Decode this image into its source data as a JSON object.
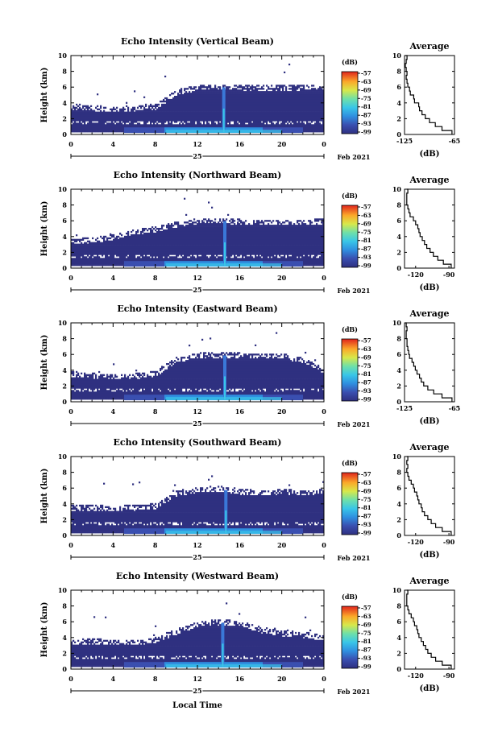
{
  "figure": {
    "xlabel": "Local Time",
    "date_label": "Feb 2021",
    "day_label": "25",
    "ylabel": "Height (km)",
    "colorbar_unit": "(dB)",
    "colorbar_ticks": [
      "-57",
      "-63",
      "-69",
      "-75",
      "-81",
      "-87",
      "-93",
      "-99"
    ],
    "avg_title": "Average",
    "avg_xlabel": "(dB)"
  },
  "chart_data": [
    {
      "type": "heatmap",
      "title": "Echo Intensity (Vertical Beam)",
      "x_ticks": [
        "0",
        "4",
        "8",
        "12",
        "16",
        "20",
        "0"
      ],
      "y_ticks": [
        "0",
        "2",
        "4",
        "6",
        "8",
        "10"
      ],
      "xlim": [
        0,
        24
      ],
      "ylim": [
        0,
        10
      ],
      "layer_tops_km": [
        3.8,
        3.6,
        3.4,
        3.6,
        3.8,
        5.6,
        6.2,
        6.3,
        6.2,
        6.1,
        6.2,
        6.2,
        6.3
      ],
      "plume_time_h": 14.5,
      "colorbar_range_db": [
        -99,
        -57
      ],
      "average_profile": {
        "xlabel": "(dB)",
        "x_ticks": [
          "-125",
          "-65"
        ],
        "xlim": [
          -125,
          -65
        ],
        "y_ticks": [
          "0",
          "2",
          "4",
          "6",
          "8",
          "10"
        ],
        "ylim": [
          0,
          10
        ],
        "x": [
          -68,
          -80,
          -88,
          -95,
          -100,
          -104,
          -107,
          -108,
          -113,
          -114,
          -118,
          -119,
          -121,
          -122,
          -123,
          -122,
          -123,
          -124,
          -123,
          -122,
          -124
        ],
        "y": [
          0,
          0.5,
          1,
          1.5,
          2,
          2.5,
          3,
          3.5,
          4,
          4.5,
          5,
          5.5,
          6,
          6.5,
          7,
          7.5,
          8,
          8.5,
          9,
          9.5,
          10
        ]
      }
    },
    {
      "type": "heatmap",
      "title": "Echo Intensity (Northward Beam)",
      "x_ticks": [
        "0",
        "4",
        "8",
        "12",
        "16",
        "20",
        "0"
      ],
      "y_ticks": [
        "0",
        "2",
        "4",
        "6",
        "8",
        "10"
      ],
      "xlim": [
        0,
        24
      ],
      "ylim": [
        0,
        10
      ],
      "layer_tops_km": [
        3.6,
        3.8,
        4.2,
        4.8,
        5.2,
        5.8,
        6.2,
        6.3,
        6.1,
        6.1,
        6.0,
        6.1,
        6.2
      ],
      "plume_time_h": 14.6,
      "colorbar_range_db": [
        -99,
        -57
      ],
      "average_profile": {
        "xlabel": "(dB)",
        "x_ticks": [
          "-120",
          "-90"
        ],
        "xlim": [
          -130,
          -85
        ],
        "y_ticks": [
          "0",
          "2",
          "4",
          "6",
          "8",
          "10"
        ],
        "ylim": [
          0,
          10
        ],
        "x": [
          -88,
          -95,
          -100,
          -104,
          -107,
          -110,
          -112,
          -114,
          -116,
          -117,
          -118,
          -120,
          -122,
          -125,
          -126,
          -127,
          -128,
          -128,
          -128,
          -127,
          -128
        ],
        "y": [
          0,
          0.5,
          1,
          1.5,
          2,
          2.5,
          3,
          3.5,
          4,
          4.5,
          5,
          5.5,
          6,
          6.5,
          7,
          7.5,
          8,
          8.5,
          9,
          9.5,
          10
        ]
      }
    },
    {
      "type": "heatmap",
      "title": "Echo Intensity (Eastward Beam)",
      "x_ticks": [
        "0",
        "4",
        "8",
        "12",
        "16",
        "20",
        "0"
      ],
      "y_ticks": [
        "0",
        "2",
        "4",
        "6",
        "8",
        "10"
      ],
      "xlim": [
        0,
        24
      ],
      "ylim": [
        0,
        10
      ],
      "layer_tops_km": [
        3.8,
        3.6,
        3.4,
        3.5,
        3.8,
        5.6,
        6.1,
        6.2,
        6.1,
        6.0,
        6.1,
        5.4,
        4.2
      ],
      "plume_time_h": 14.6,
      "colorbar_range_db": [
        -99,
        -57
      ],
      "average_profile": {
        "xlabel": "(dB)",
        "x_ticks": [
          "-125",
          "-65"
        ],
        "xlim": [
          -125,
          -65
        ],
        "y_ticks": [
          "0",
          "2",
          "4",
          "6",
          "8",
          "10"
        ],
        "ylim": [
          0,
          10
        ],
        "x": [
          -68,
          -80,
          -90,
          -97,
          -102,
          -105,
          -107,
          -110,
          -112,
          -114,
          -116,
          -119,
          -120,
          -121,
          -122,
          -122,
          -123,
          -123,
          -122,
          -123,
          -124
        ],
        "y": [
          0,
          0.5,
          1,
          1.5,
          2,
          2.5,
          3,
          3.5,
          4,
          4.5,
          5,
          5.5,
          6,
          6.5,
          7,
          7.5,
          8,
          8.5,
          9,
          9.5,
          10
        ]
      }
    },
    {
      "type": "heatmap",
      "title": "Echo Intensity (Southward Beam)",
      "x_ticks": [
        "0",
        "4",
        "8",
        "12",
        "16",
        "20",
        "0"
      ],
      "y_ticks": [
        "0",
        "2",
        "4",
        "6",
        "8",
        "10"
      ],
      "xlim": [
        0,
        24
      ],
      "ylim": [
        0,
        10
      ],
      "layer_tops_km": [
        3.8,
        3.8,
        3.6,
        3.8,
        4.0,
        5.6,
        6.0,
        6.2,
        5.8,
        5.6,
        5.8,
        5.6,
        5.8
      ],
      "plume_time_h": 14.7,
      "colorbar_range_db": [
        -99,
        -57
      ],
      "average_profile": {
        "xlabel": "(dB)",
        "x_ticks": [
          "-120",
          "-90"
        ],
        "xlim": [
          -130,
          -85
        ],
        "y_ticks": [
          "0",
          "2",
          "4",
          "6",
          "8",
          "10"
        ],
        "ylim": [
          0,
          10
        ],
        "x": [
          -88,
          -96,
          -102,
          -106,
          -109,
          -112,
          -114,
          -115,
          -117,
          -118,
          -119,
          -121,
          -122,
          -124,
          -126,
          -127,
          -128,
          -127,
          -128,
          -127,
          -128
        ],
        "y": [
          0,
          0.5,
          1,
          1.5,
          2,
          2.5,
          3,
          3.5,
          4,
          4.5,
          5,
          5.5,
          6,
          6.5,
          7,
          7.5,
          8,
          8.5,
          9,
          9.5,
          10
        ]
      }
    },
    {
      "type": "heatmap",
      "title": "Echo Intensity (Westward Beam)",
      "x_ticks": [
        "0",
        "4",
        "8",
        "12",
        "16",
        "20",
        "0"
      ],
      "y_ticks": [
        "0",
        "2",
        "4",
        "6",
        "8",
        "10"
      ],
      "xlim": [
        0,
        24
      ],
      "ylim": [
        0,
        10
      ],
      "layer_tops_km": [
        3.6,
        3.8,
        3.6,
        3.6,
        4.0,
        5.0,
        6.0,
        6.2,
        6.0,
        5.2,
        4.8,
        4.6,
        4.2
      ],
      "plume_time_h": 14.4,
      "colorbar_range_db": [
        -99,
        -57
      ],
      "average_profile": {
        "xlabel": "(dB)",
        "x_ticks": [
          "-120",
          "-90"
        ],
        "xlim": [
          -130,
          -85
        ],
        "y_ticks": [
          "0",
          "2",
          "4",
          "6",
          "8",
          "10"
        ],
        "ylim": [
          0,
          10
        ],
        "x": [
          -88,
          -96,
          -102,
          -106,
          -109,
          -111,
          -113,
          -115,
          -117,
          -118,
          -119,
          -121,
          -122,
          -124,
          -126,
          -127,
          -128,
          -128,
          -128,
          -127,
          -128
        ],
        "y": [
          0,
          0.5,
          1,
          1.5,
          2,
          2.5,
          3,
          3.5,
          4,
          4.5,
          5,
          5.5,
          6,
          6.5,
          7,
          7.5,
          8,
          8.5,
          9,
          9.5,
          10
        ]
      }
    }
  ]
}
